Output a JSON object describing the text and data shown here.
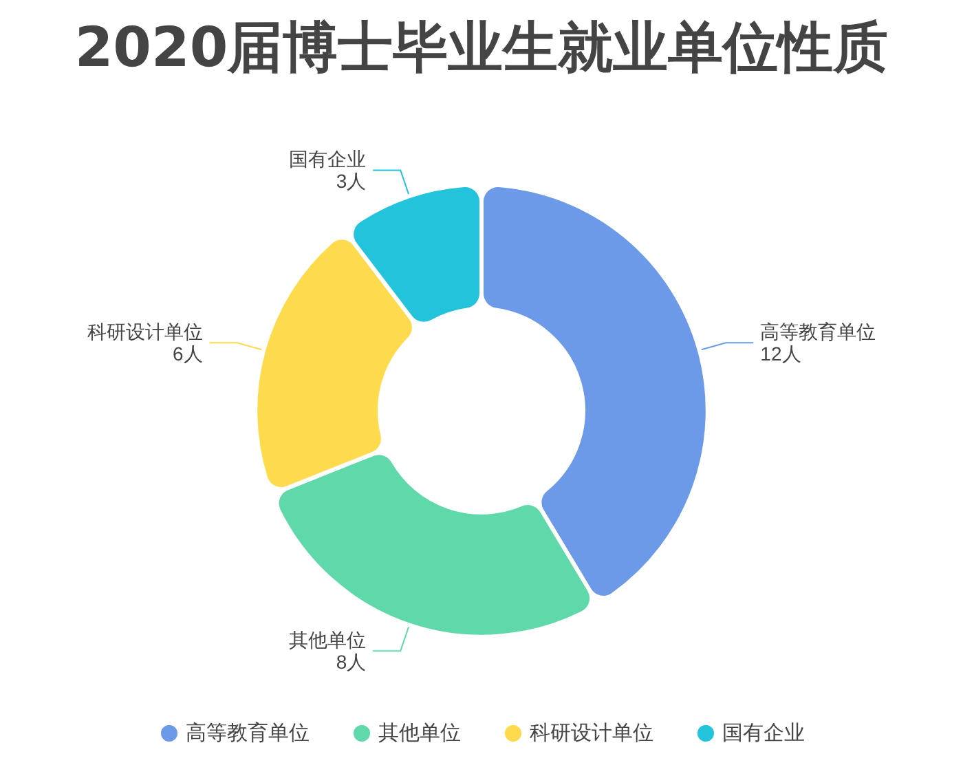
{
  "chart_data": {
    "type": "donut",
    "title": "2020届博士毕业生就业单位性质",
    "categories": [
      "高等教育单位",
      "其他单位",
      "科研设计单位",
      "国有企业"
    ],
    "values": [
      12,
      8,
      6,
      3
    ],
    "value_labels": [
      "12人",
      "8人",
      "6人",
      "3人"
    ],
    "colors": [
      "#6d9ae8",
      "#5fd9aa",
      "#fedb4c",
      "#22c3db"
    ],
    "legend": "bottom"
  }
}
